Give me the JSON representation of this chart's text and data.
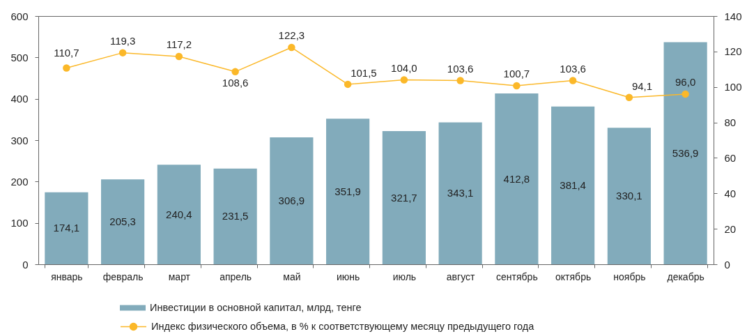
{
  "chart_data": {
    "type": "bar",
    "categories": [
      "январь",
      "февраль",
      "март",
      "апрель",
      "май",
      "июнь",
      "июль",
      "август",
      "сентябрь",
      "октябрь",
      "ноябрь",
      "декабрь"
    ],
    "series": [
      {
        "name": "Инвестиции в основной капитал, млрд, тенге",
        "color": "#82abbb",
        "values": [
          174.1,
          205.3,
          240.4,
          231.5,
          306.9,
          351.9,
          321.7,
          343.1,
          412.8,
          381.4,
          330.1,
          536.9
        ],
        "value_labels": [
          "174,1",
          "205,3",
          "240,4",
          "231,5",
          "306,9",
          "351,9",
          "321,7",
          "343,1",
          "412,8",
          "381,4",
          "330,1",
          "536,9"
        ]
      },
      {
        "name": "Индекс физического объема, в % к соответствующему месяцу предыдущего года",
        "type": "line",
        "axis": "y2",
        "color": "#fbb829",
        "marker": "circle",
        "values": [
          110.7,
          119.3,
          117.2,
          108.6,
          122.3,
          101.5,
          104.0,
          103.6,
          100.7,
          103.6,
          94.1,
          96.0
        ],
        "value_labels": [
          "110,7",
          "119,3",
          "117,2",
          "108,6",
          "122,3",
          "101,5",
          "104,0",
          "103,6",
          "100,7",
          "103,6",
          "94,1",
          "96,0"
        ]
      }
    ],
    "ylim": [
      0,
      600
    ],
    "yticks": [
      0,
      100,
      200,
      300,
      400,
      500,
      600
    ],
    "y2lim": [
      0,
      140
    ],
    "y2ticks": [
      0,
      20,
      40,
      60,
      80,
      100,
      120,
      140
    ],
    "legend": "bottom"
  }
}
